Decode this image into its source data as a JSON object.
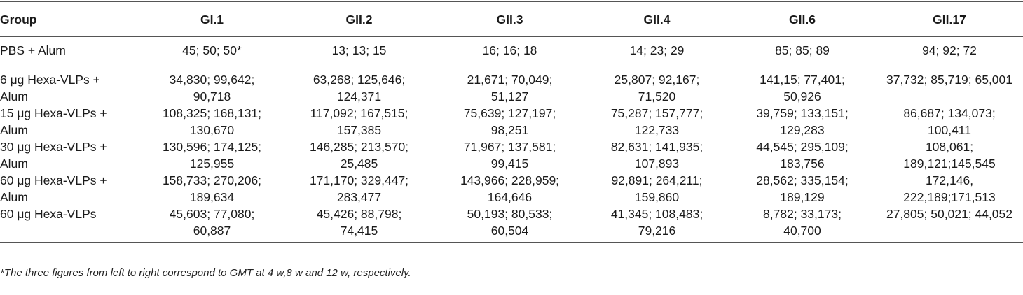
{
  "table": {
    "headers": [
      "Group",
      "GI.1",
      "GII.2",
      "GII.3",
      "GII.4",
      "GII.6",
      "GII.17"
    ],
    "rows": [
      {
        "group": "PBS + Alum",
        "values": [
          "45; 50; 50*",
          "13; 13; 15",
          "16; 16; 18",
          "14; 23; 29",
          "85; 85; 89",
          "94; 92; 72"
        ]
      },
      {
        "group": "6 μg Hexa-VLPs +\nAlum",
        "values": [
          "34,830; 99,642;\n90,718",
          "63,268; 125,646;\n124,371",
          "21,671; 70,049;\n51,127",
          "25,807; 92,167;\n71,520",
          "141,15; 77,401;\n50,926",
          "37,732; 85,719; 65,001"
        ]
      },
      {
        "group": "15 μg Hexa-VLPs +\nAlum",
        "values": [
          "108,325; 168,131;\n130,670",
          "117,092; 167,515;\n157,385",
          "75,639; 127,197;\n98,251",
          "75,287; 157,777;\n122,733",
          "39,759; 133,151;\n129,283",
          "86,687; 134,073;\n100,411"
        ]
      },
      {
        "group": "30 μg Hexa-VLPs +\nAlum",
        "values": [
          "130,596; 174,125;\n125,955",
          "146,285; 213,570;\n25,485",
          "71,967; 137,581;\n99,415",
          "82,631; 141,935;\n107,893",
          "44,545; 295,109;\n183,756",
          "108,061;\n189,121;145,545"
        ]
      },
      {
        "group": "60 μg Hexa-VLPs +\nAlum",
        "values": [
          "158,733; 270,206;\n189,634",
          "171,170; 329,447;\n283,477",
          "143,966; 228,959;\n164,646",
          "92,891; 264,211;\n159,860",
          "28,562; 335,154;\n189,129",
          "172,146,\n222,189;171,513"
        ]
      },
      {
        "group": "60 μg Hexa-VLPs",
        "values": [
          "45,603; 77,080;\n60,887",
          "45,426; 88,798;\n74,415",
          "50,193; 80,533;\n60,504",
          "41,345; 108,483;\n79,216",
          "8,782; 33,173;\n40,700",
          "27,805; 50,021; 44,052"
        ]
      }
    ]
  },
  "footnote": "*The three figures from left to right correspond to GMT at 4 w,8 w and 12 w, respectively."
}
